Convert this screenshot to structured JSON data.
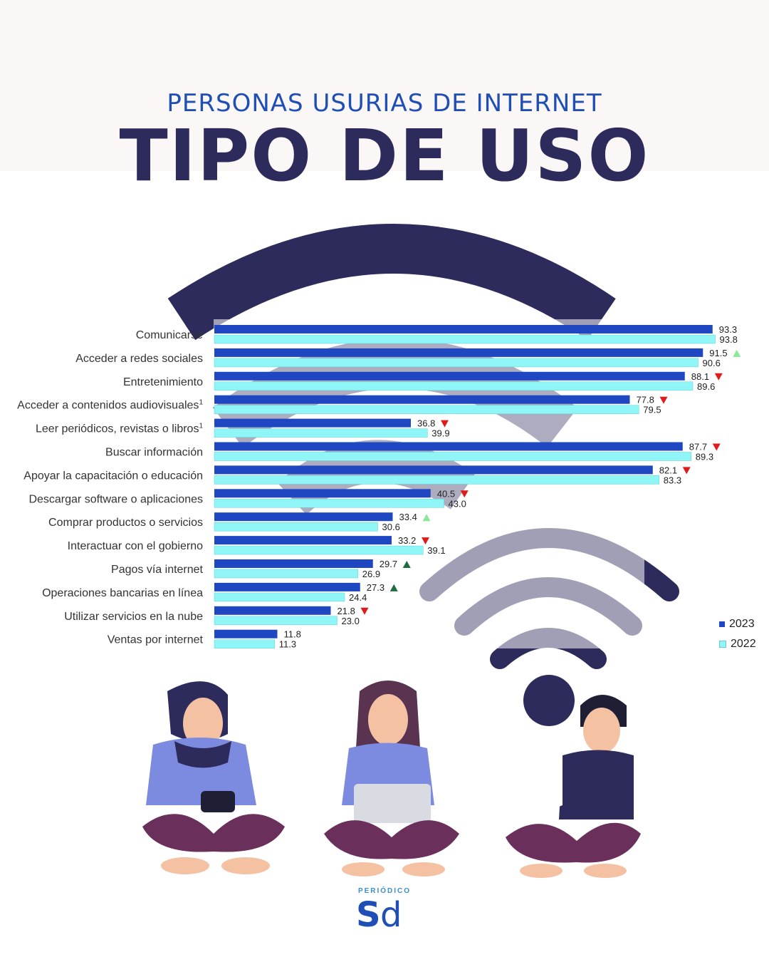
{
  "header": {
    "subtitle": "PERSONAS USURIAS DE INTERNET",
    "title": "TIPO DE USO"
  },
  "colors": {
    "bar_2023": "#1f47c2",
    "bar_2022": "#8ff5f7",
    "title": "#2d2a5c",
    "subtitle": "#1f4fb5",
    "up_light": "#8be89a",
    "up_dark": "#1d6b3e",
    "down": "#e01b1b",
    "wifi": "#2d2a5c"
  },
  "legend": [
    {
      "label": "2023",
      "color": "#1f47c2"
    },
    {
      "label": "2022",
      "color": "#8ff5f7"
    }
  ],
  "chart_data": {
    "type": "bar",
    "orientation": "horizontal",
    "categories": [
      "Comunicarse",
      "Acceder a redes sociales",
      "Entretenimiento",
      "Acceder a contenidos audiovisuales",
      "Leer periódicos, revistas o libros",
      "Buscar información",
      "Apoyar la capacitación o educación",
      "Descargar software o aplicaciones",
      "Comprar productos o servicios",
      "Interactuar con el gobierno",
      "Pagos vía internet",
      "Operaciones bancarias en línea",
      "Utilizar servicios en la nube",
      "Ventas por internet"
    ],
    "footnotes": [
      "",
      "",
      "",
      "1",
      "1",
      "",
      "",
      "",
      "",
      "",
      "",
      "",
      "",
      ""
    ],
    "series": [
      {
        "name": "2023",
        "values": [
          93.3,
          91.5,
          88.1,
          77.8,
          36.8,
          87.7,
          82.1,
          40.5,
          33.4,
          33.2,
          29.7,
          27.3,
          21.8,
          11.8
        ]
      },
      {
        "name": "2022",
        "values": [
          93.8,
          90.6,
          89.6,
          79.5,
          39.9,
          89.3,
          83.3,
          43.0,
          30.6,
          39.1,
          26.9,
          24.4,
          23.0,
          11.3
        ]
      }
    ],
    "value_labels_2023": [
      "93.3",
      "91.5",
      "88.1",
      "77.8",
      "36.8",
      "87.7",
      "82.1",
      "40.5",
      "33.4",
      "33.2",
      "29.7",
      "27.3",
      "21.8",
      "11.8"
    ],
    "value_labels_2022": [
      "93.8",
      "90.6",
      "89.6",
      "79.5",
      "39.9",
      "89.3",
      "83.3",
      "43.0",
      "30.6",
      "39.1",
      "26.9",
      "24.4",
      "23.0",
      "11.3"
    ],
    "change_markers": [
      "",
      "up-light",
      "down",
      "down",
      "down",
      "down",
      "down",
      "down",
      "up-light",
      "down",
      "up-dark",
      "up-dark",
      "down",
      ""
    ],
    "xlim": [
      0,
      100
    ]
  }
}
